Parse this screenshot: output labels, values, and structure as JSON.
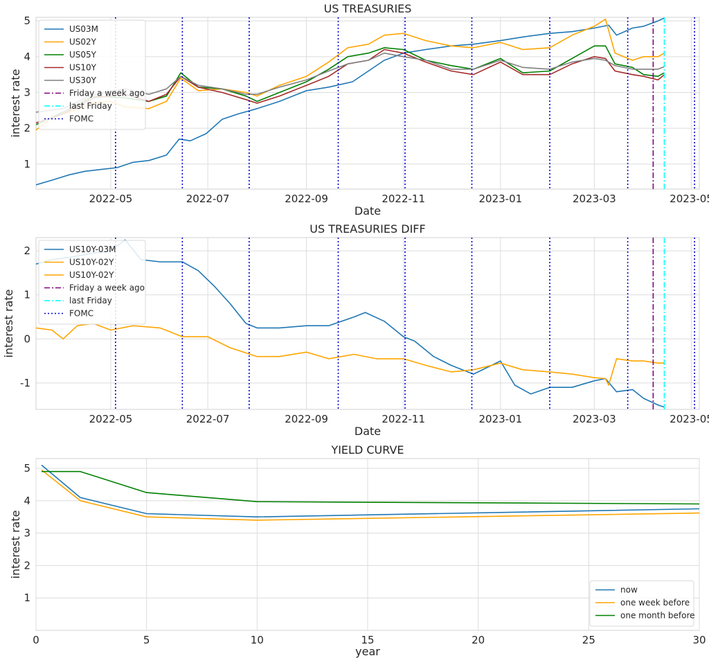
{
  "colors": {
    "blue": "#1f77b4",
    "orange": "#ffa500",
    "green": "#008000",
    "red": "#a52a2a",
    "gray": "#808080",
    "purple": "#800080",
    "cyan": "#00ffff",
    "fomc": "#0000cd",
    "grid": "#dcdcdc",
    "axes_edge": "#d0d0d0"
  },
  "chart_data": [
    {
      "type": "line",
      "title": "US TREASURIES",
      "xlabel": "Date",
      "ylabel": "interest rate",
      "xlim": [
        "2022-03-15",
        "2023-05-06"
      ],
      "ylim": [
        0.3,
        5.1
      ],
      "yticks": [
        1,
        2,
        3,
        4,
        5
      ],
      "xticks": [
        "2022-05",
        "2022-07",
        "2022-09",
        "2022-11",
        "2023-01",
        "2023-03",
        "2023-05"
      ],
      "grid": true,
      "legend": "upper-left",
      "series": [
        {
          "name": "US03M",
          "color": "blue",
          "x": [
            "2022-03-15",
            "2022-03-25",
            "2022-04-05",
            "2022-04-15",
            "2022-04-25",
            "2022-05-05",
            "2022-05-15",
            "2022-05-25",
            "2022-06-05",
            "2022-06-13",
            "2022-06-20",
            "2022-06-30",
            "2022-07-10",
            "2022-07-20",
            "2022-08-01",
            "2022-08-15",
            "2022-09-01",
            "2022-09-15",
            "2022-09-30",
            "2022-10-10",
            "2022-10-20",
            "2022-11-01",
            "2022-11-15",
            "2022-12-01",
            "2022-12-15",
            "2023-01-01",
            "2023-01-15",
            "2023-02-01",
            "2023-02-15",
            "2023-03-01",
            "2023-03-10",
            "2023-03-15",
            "2023-03-25",
            "2023-04-01",
            "2023-04-10",
            "2023-04-14"
          ],
          "values": [
            0.42,
            0.55,
            0.7,
            0.8,
            0.85,
            0.9,
            1.05,
            1.1,
            1.25,
            1.7,
            1.65,
            1.85,
            2.25,
            2.4,
            2.55,
            2.75,
            3.05,
            3.15,
            3.3,
            3.6,
            3.9,
            4.1,
            4.2,
            4.3,
            4.35,
            4.45,
            4.55,
            4.65,
            4.7,
            4.8,
            4.88,
            4.6,
            4.8,
            4.85,
            5.0,
            5.08
          ]
        },
        {
          "name": "US02Y",
          "color": "orange",
          "x": [
            "2022-03-15",
            "2022-03-25",
            "2022-04-05",
            "2022-04-20",
            "2022-05-01",
            "2022-05-10",
            "2022-05-25",
            "2022-06-05",
            "2022-06-14",
            "2022-06-25",
            "2022-07-10",
            "2022-07-25",
            "2022-08-01",
            "2022-08-15",
            "2022-09-01",
            "2022-09-15",
            "2022-09-27",
            "2022-10-10",
            "2022-10-20",
            "2022-11-01",
            "2022-11-15",
            "2022-12-01",
            "2022-12-15",
            "2023-01-01",
            "2023-01-15",
            "2023-02-01",
            "2023-02-15",
            "2023-03-01",
            "2023-03-08",
            "2023-03-14",
            "2023-03-25",
            "2023-04-01",
            "2023-04-10",
            "2023-04-14"
          ],
          "values": [
            1.95,
            2.3,
            2.45,
            2.7,
            2.75,
            2.6,
            2.55,
            2.75,
            3.4,
            3.05,
            3.1,
            3.0,
            2.9,
            3.2,
            3.45,
            3.85,
            4.25,
            4.35,
            4.6,
            4.65,
            4.45,
            4.3,
            4.25,
            4.4,
            4.2,
            4.25,
            4.6,
            4.85,
            5.05,
            4.1,
            3.9,
            4.0,
            4.0,
            4.1
          ]
        },
        {
          "name": "US05Y",
          "color": "green",
          "x": [
            "2022-03-15",
            "2022-04-01",
            "2022-04-20",
            "2022-05-10",
            "2022-05-25",
            "2022-06-05",
            "2022-06-14",
            "2022-06-25",
            "2022-07-10",
            "2022-07-25",
            "2022-08-01",
            "2022-08-15",
            "2022-09-01",
            "2022-09-15",
            "2022-09-27",
            "2022-10-10",
            "2022-10-20",
            "2022-11-01",
            "2022-11-15",
            "2022-12-01",
            "2022-12-15",
            "2023-01-01",
            "2023-01-15",
            "2023-02-01",
            "2023-02-15",
            "2023-03-01",
            "2023-03-08",
            "2023-03-14",
            "2023-03-25",
            "2023-04-01",
            "2023-04-10",
            "2023-04-14"
          ],
          "values": [
            2.1,
            2.45,
            2.9,
            2.85,
            2.75,
            2.9,
            3.55,
            3.15,
            3.1,
            2.9,
            2.75,
            3.0,
            3.3,
            3.65,
            4.0,
            4.1,
            4.25,
            4.2,
            3.9,
            3.75,
            3.65,
            3.95,
            3.55,
            3.6,
            3.95,
            4.3,
            4.3,
            3.8,
            3.7,
            3.5,
            3.45,
            3.55
          ]
        },
        {
          "name": "US10Y",
          "color": "red",
          "x": [
            "2022-03-15",
            "2022-04-01",
            "2022-04-20",
            "2022-05-10",
            "2022-05-25",
            "2022-06-05",
            "2022-06-14",
            "2022-06-25",
            "2022-07-10",
            "2022-07-25",
            "2022-08-01",
            "2022-08-15",
            "2022-09-01",
            "2022-09-15",
            "2022-09-27",
            "2022-10-10",
            "2022-10-20",
            "2022-11-01",
            "2022-11-15",
            "2022-12-01",
            "2022-12-15",
            "2023-01-01",
            "2023-01-15",
            "2023-02-01",
            "2023-02-15",
            "2023-03-01",
            "2023-03-08",
            "2023-03-14",
            "2023-03-25",
            "2023-04-01",
            "2023-04-10",
            "2023-04-14"
          ],
          "values": [
            2.15,
            2.4,
            2.85,
            2.95,
            2.75,
            2.95,
            3.45,
            3.15,
            3.0,
            2.8,
            2.7,
            2.9,
            3.2,
            3.45,
            3.8,
            3.9,
            4.2,
            4.1,
            3.85,
            3.6,
            3.5,
            3.85,
            3.5,
            3.5,
            3.8,
            4.0,
            3.95,
            3.6,
            3.5,
            3.45,
            3.35,
            3.5
          ]
        },
        {
          "name": "US30Y",
          "color": "gray",
          "x": [
            "2022-03-15",
            "2022-04-01",
            "2022-04-20",
            "2022-05-10",
            "2022-05-25",
            "2022-06-05",
            "2022-06-14",
            "2022-06-25",
            "2022-07-10",
            "2022-07-25",
            "2022-08-01",
            "2022-08-15",
            "2022-09-01",
            "2022-09-15",
            "2022-09-27",
            "2022-10-10",
            "2022-10-20",
            "2022-11-01",
            "2022-11-15",
            "2022-12-01",
            "2022-12-15",
            "2023-01-01",
            "2023-01-15",
            "2023-02-01",
            "2023-02-15",
            "2023-03-01",
            "2023-03-08",
            "2023-03-14",
            "2023-03-25",
            "2023-04-01",
            "2023-04-10",
            "2023-04-14"
          ],
          "values": [
            2.45,
            2.55,
            2.95,
            3.1,
            2.95,
            3.1,
            3.45,
            3.2,
            3.1,
            2.95,
            2.95,
            3.15,
            3.35,
            3.6,
            3.8,
            3.9,
            4.1,
            4.0,
            3.9,
            3.65,
            3.65,
            3.9,
            3.7,
            3.65,
            3.85,
            3.95,
            3.9,
            3.75,
            3.65,
            3.65,
            3.65,
            3.72
          ]
        }
      ],
      "markers": [
        {
          "name": "Friday a week ago",
          "date": "2023-04-07",
          "color": "purple",
          "style": "dashdot"
        },
        {
          "name": "last Friday",
          "date": "2023-04-14",
          "color": "cyan",
          "style": "dashdot"
        },
        {
          "name": "FOMC",
          "dates": [
            "2022-05-04",
            "2022-06-15",
            "2022-07-27",
            "2022-09-21",
            "2022-11-02",
            "2022-12-14",
            "2023-02-01",
            "2023-03-22",
            "2023-05-03"
          ],
          "color": "fomc",
          "style": "dotted"
        }
      ]
    },
    {
      "type": "line",
      "title": "US TREASURIES DIFF",
      "xlabel": "Date",
      "ylabel": "interest rate",
      "xlim": [
        "2022-03-15",
        "2023-05-06"
      ],
      "ylim": [
        -1.6,
        2.3
      ],
      "yticks": [
        -1,
        0,
        1,
        2
      ],
      "xticks": [
        "2022-05",
        "2022-07",
        "2022-09",
        "2022-11",
        "2023-01",
        "2023-03",
        "2023-05"
      ],
      "grid": true,
      "legend": "upper-left",
      "series": [
        {
          "name": "US10Y-03M",
          "color": "blue",
          "x": [
            "2022-03-15",
            "2022-03-25",
            "2022-04-05",
            "2022-04-20",
            "2022-05-01",
            "2022-05-10",
            "2022-05-20",
            "2022-06-01",
            "2022-06-15",
            "2022-06-25",
            "2022-07-05",
            "2022-07-15",
            "2022-07-25",
            "2022-08-01",
            "2022-08-15",
            "2022-09-01",
            "2022-09-15",
            "2022-10-01",
            "2022-10-08",
            "2022-10-20",
            "2022-11-01",
            "2022-11-08",
            "2022-11-20",
            "2022-12-01",
            "2022-12-15",
            "2023-01-01",
            "2023-01-10",
            "2023-01-20",
            "2023-02-01",
            "2023-02-15",
            "2023-03-01",
            "2023-03-08",
            "2023-03-15",
            "2023-03-25",
            "2023-04-01",
            "2023-04-10",
            "2023-04-14"
          ],
          "values": [
            1.7,
            1.8,
            1.85,
            1.95,
            2.0,
            2.25,
            1.8,
            1.75,
            1.75,
            1.55,
            1.2,
            0.8,
            0.35,
            0.25,
            0.25,
            0.3,
            0.3,
            0.5,
            0.6,
            0.4,
            0.05,
            -0.05,
            -0.4,
            -0.6,
            -0.8,
            -0.5,
            -1.05,
            -1.25,
            -1.1,
            -1.1,
            -0.95,
            -0.9,
            -1.2,
            -1.15,
            -1.35,
            -1.5,
            -1.55
          ]
        },
        {
          "name": "US10Y-02Y",
          "color": "orange",
          "x": [
            "2022-03-15",
            "2022-03-25",
            "2022-04-01",
            "2022-04-10",
            "2022-04-20",
            "2022-05-01",
            "2022-05-15",
            "2022-06-01",
            "2022-06-15",
            "2022-07-01",
            "2022-07-15",
            "2022-08-01",
            "2022-08-15",
            "2022-09-01",
            "2022-09-15",
            "2022-10-01",
            "2022-10-15",
            "2022-11-01",
            "2022-11-15",
            "2022-12-01",
            "2022-12-15",
            "2023-01-01",
            "2023-01-15",
            "2023-02-01",
            "2023-02-15",
            "2023-03-01",
            "2023-03-08",
            "2023-03-10",
            "2023-03-15",
            "2023-03-25",
            "2023-04-01",
            "2023-04-10",
            "2023-04-14"
          ],
          "values": [
            0.25,
            0.2,
            0.0,
            0.3,
            0.35,
            0.2,
            0.3,
            0.25,
            0.05,
            0.05,
            -0.2,
            -0.4,
            -0.4,
            -0.3,
            -0.45,
            -0.35,
            -0.45,
            -0.45,
            -0.6,
            -0.75,
            -0.7,
            -0.55,
            -0.7,
            -0.75,
            -0.8,
            -0.88,
            -0.9,
            -1.05,
            -0.45,
            -0.5,
            -0.5,
            -0.55,
            -0.55
          ]
        },
        {
          "name": "US10Y-02Y",
          "color": "orange",
          "values": []
        }
      ],
      "markers": [
        {
          "name": "Friday a week ago",
          "date": "2023-04-07",
          "color": "purple",
          "style": "dashdot"
        },
        {
          "name": "last Friday",
          "date": "2023-04-14",
          "color": "cyan",
          "style": "dashdot"
        },
        {
          "name": "FOMC",
          "dates": [
            "2022-05-04",
            "2022-06-15",
            "2022-07-27",
            "2022-09-21",
            "2022-11-02",
            "2022-12-14",
            "2023-02-01",
            "2023-03-22",
            "2023-05-03"
          ],
          "color": "fomc",
          "style": "dotted"
        }
      ]
    },
    {
      "type": "line",
      "title": "YIELD CURVE",
      "xlabel": "year",
      "ylabel": "interest rate",
      "xlim": [
        0,
        30
      ],
      "ylim": [
        0,
        5.3
      ],
      "xticks": [
        0,
        5,
        10,
        15,
        20,
        25,
        30
      ],
      "yticks": [
        1,
        2,
        3,
        4,
        5
      ],
      "grid": true,
      "legend": "lower-right",
      "x": [
        0.25,
        2,
        5,
        10,
        30
      ],
      "series": [
        {
          "name": "now",
          "color": "blue",
          "values": [
            5.1,
            4.1,
            3.6,
            3.5,
            3.75
          ]
        },
        {
          "name": "one week before",
          "color": "orange",
          "values": [
            4.95,
            4.0,
            3.5,
            3.4,
            3.62
          ]
        },
        {
          "name": "one month before",
          "color": "green",
          "values": [
            4.9,
            4.9,
            4.25,
            3.97,
            3.9
          ]
        }
      ]
    }
  ]
}
